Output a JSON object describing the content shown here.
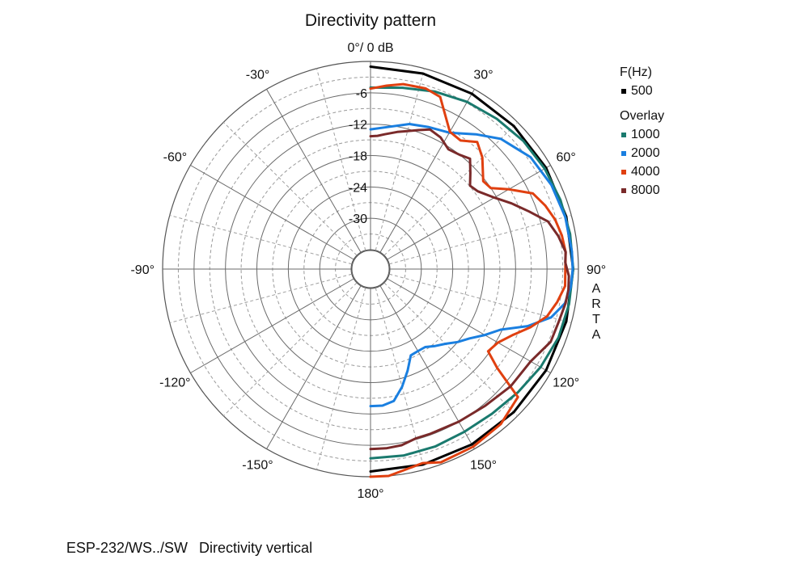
{
  "chart_data": {
    "type": "polar-line",
    "title": "Directivity pattern",
    "top_label": "0°/ 0 dB",
    "r_range_db": [
      -36,
      0
    ],
    "r_ticks": [
      {
        "value": -6,
        "label": "-6"
      },
      {
        "value": -12,
        "label": "-12"
      },
      {
        "value": -18,
        "label": "-18"
      },
      {
        "value": -24,
        "label": "-24"
      },
      {
        "value": -30,
        "label": "-30"
      }
    ],
    "angle_labels": [
      {
        "angle": 30,
        "label": "30°"
      },
      {
        "angle": 60,
        "label": "60°"
      },
      {
        "angle": 90,
        "label": "90°"
      },
      {
        "angle": 120,
        "label": "120°"
      },
      {
        "angle": 150,
        "label": "150°"
      },
      {
        "angle": 180,
        "label": "180°"
      },
      {
        "angle": -150,
        "label": "-150°"
      },
      {
        "angle": -120,
        "label": "-120°"
      },
      {
        "angle": -90,
        "label": "-90°"
      },
      {
        "angle": -60,
        "label": "-60°"
      },
      {
        "angle": -30,
        "label": "-30°"
      }
    ],
    "grid": true,
    "legend": {
      "heading": "F(Hz)",
      "overlay_heading": "Overlay",
      "placement": "right"
    },
    "series": [
      {
        "name": "500",
        "color": "#000000",
        "group": "main",
        "points": [
          [
            0,
            -1
          ],
          [
            15,
            -1
          ],
          [
            30,
            -1
          ],
          [
            45,
            -1
          ],
          [
            60,
            -1
          ],
          [
            75,
            -1
          ],
          [
            90,
            -1
          ],
          [
            105,
            -1
          ],
          [
            120,
            -1
          ],
          [
            135,
            -1
          ],
          [
            150,
            -1
          ],
          [
            165,
            -1
          ],
          [
            180,
            -1
          ]
        ]
      },
      {
        "name": "1000",
        "color": "#1a7a6e",
        "group": "overlay",
        "points": [
          [
            0,
            -5
          ],
          [
            10,
            -4.5
          ],
          [
            20,
            -3.6
          ],
          [
            30,
            -2.8
          ],
          [
            40,
            -2.2
          ],
          [
            50,
            -1.6
          ],
          [
            60,
            -1.3
          ],
          [
            70,
            -1.1
          ],
          [
            80,
            -1
          ],
          [
            90,
            -1
          ],
          [
            100,
            -1.2
          ],
          [
            110,
            -1.5
          ],
          [
            120,
            -2.2
          ],
          [
            130,
            -3
          ],
          [
            140,
            -3.6
          ],
          [
            150,
            -3.8
          ],
          [
            160,
            -3.6
          ],
          [
            170,
            -3.5
          ],
          [
            180,
            -3.5
          ]
        ]
      },
      {
        "name": "2000",
        "color": "#1a7fe0",
        "group": "overlay",
        "points": [
          [
            0,
            -13
          ],
          [
            8,
            -12.2
          ],
          [
            15,
            -11
          ],
          [
            22,
            -10.4
          ],
          [
            30,
            -9.6
          ],
          [
            38,
            -7
          ],
          [
            45,
            -4.5
          ],
          [
            55,
            -2.4
          ],
          [
            65,
            -1.6
          ],
          [
            75,
            -1.2
          ],
          [
            85,
            -1.1
          ],
          [
            90,
            -1.1
          ],
          [
            95,
            -1.3
          ],
          [
            100,
            -2
          ],
          [
            105,
            -4
          ],
          [
            110,
            -7.8
          ],
          [
            115,
            -12.3
          ],
          [
            120,
            -14.5
          ],
          [
            125,
            -16.6
          ],
          [
            130,
            -18
          ],
          [
            135,
            -19.5
          ],
          [
            140,
            -20.5
          ],
          [
            145,
            -21.5
          ],
          [
            150,
            -21.6
          ],
          [
            155,
            -21.5
          ],
          [
            160,
            -19
          ],
          [
            165,
            -16.4
          ],
          [
            170,
            -14.1
          ],
          [
            175,
            -13.5
          ],
          [
            180,
            -13.5
          ]
        ]
      },
      {
        "name": "4000",
        "color": "#e04010",
        "group": "overlay",
        "points": [
          [
            0,
            -5.2
          ],
          [
            5,
            -4.5
          ],
          [
            10,
            -3.8
          ],
          [
            17,
            -3.6
          ],
          [
            22,
            -4.2
          ],
          [
            30,
            -9.4
          ],
          [
            35,
            -9.7
          ],
          [
            40,
            -8
          ],
          [
            45,
            -9.5
          ],
          [
            52,
            -12.4
          ],
          [
            56,
            -12
          ],
          [
            60,
            -9.2
          ],
          [
            65,
            -5.5
          ],
          [
            70,
            -4.2
          ],
          [
            75,
            -3.2
          ],
          [
            80,
            -2.6
          ],
          [
            85,
            -2.3
          ],
          [
            90,
            -2.5
          ],
          [
            95,
            -2.4
          ],
          [
            100,
            -3.5
          ],
          [
            105,
            -4.8
          ],
          [
            110,
            -7.2
          ],
          [
            115,
            -9.8
          ],
          [
            120,
            -11.6
          ],
          [
            125,
            -12.3
          ],
          [
            128,
            -9
          ],
          [
            131,
            -2.4
          ],
          [
            140,
            -1
          ],
          [
            150,
            -0.5
          ],
          [
            160,
            -0.4
          ],
          [
            165,
            -1.3
          ],
          [
            170,
            -0.8
          ],
          [
            175,
            0
          ],
          [
            180,
            0
          ]
        ]
      },
      {
        "name": "8000",
        "color": "#7a2a2a",
        "group": "overlay",
        "points": [
          [
            0,
            -14.3
          ],
          [
            3,
            -14.2
          ],
          [
            6,
            -13.8
          ],
          [
            11,
            -13
          ],
          [
            15,
            -12.4
          ],
          [
            19,
            -11.6
          ],
          [
            23,
            -10.7
          ],
          [
            28,
            -11.2
          ],
          [
            33,
            -12.4
          ],
          [
            38,
            -12
          ],
          [
            42,
            -11.3
          ],
          [
            46,
            -13.2
          ],
          [
            50,
            -14.9
          ],
          [
            54,
            -14.4
          ],
          [
            60,
            -12.4
          ],
          [
            65,
            -10
          ],
          [
            70,
            -7.5
          ],
          [
            75,
            -4.6
          ],
          [
            80,
            -3.3
          ],
          [
            85,
            -2.3
          ],
          [
            88,
            -2.5
          ],
          [
            92,
            -1.8
          ],
          [
            96,
            -1.7
          ],
          [
            100,
            -1.9
          ],
          [
            106,
            -2.4
          ],
          [
            112,
            -2.6
          ],
          [
            120,
            -4.4
          ],
          [
            130,
            -4.8
          ],
          [
            140,
            -5.6
          ],
          [
            150,
            -6
          ],
          [
            160,
            -6.2
          ],
          [
            165,
            -6.2
          ],
          [
            170,
            -5.5
          ],
          [
            175,
            -5.3
          ],
          [
            180,
            -5.3
          ]
        ]
      }
    ]
  },
  "arta_label": [
    "A",
    "R",
    "T",
    "A"
  ],
  "footer": {
    "model": "ESP-232/WS../SW",
    "caption": "Directivity vertical"
  }
}
